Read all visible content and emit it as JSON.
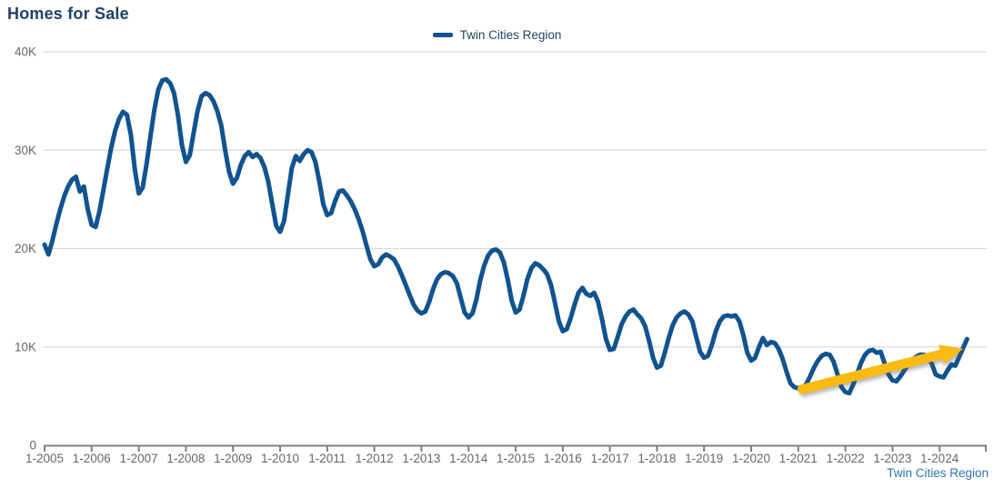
{
  "chart_data": {
    "type": "line",
    "title": "Homes for Sale",
    "footer_label": "Twin Cities Region",
    "legend": {
      "position": "top-center",
      "label": "Twin Cities Region"
    },
    "grid": true,
    "colors": {
      "line": "#10538F",
      "arrow": "#FBBA12",
      "title_text": "#1F4266",
      "footer_text": "#2E74B5",
      "gridline": "#D9D9D9",
      "axis_line": "#7F7F7F",
      "tick_text": "#666666"
    },
    "x_axis": {
      "tick_labels": [
        "1-2005",
        "1-2006",
        "1-2007",
        "1-2008",
        "1-2009",
        "1-2010",
        "1-2011",
        "1-2012",
        "1-2013",
        "1-2014",
        "1-2015",
        "1-2016",
        "1-2017",
        "1-2018",
        "1-2019",
        "1-2020",
        "1-2021",
        "1-2022",
        "1-2023",
        "1-2024"
      ],
      "start_month": "2005-01",
      "months_per_tick": 12
    },
    "y_axis": {
      "ylim": [
        0,
        40000
      ],
      "ticks": [
        {
          "label": "0",
          "value": 0
        },
        {
          "label": "10K",
          "value": 10000
        },
        {
          "label": "20K",
          "value": 20000
        },
        {
          "label": "30K",
          "value": 30000
        },
        {
          "label": "40K",
          "value": 40000
        }
      ]
    },
    "series": [
      {
        "name": "Twin Cities Region",
        "start_month": "2005-01",
        "frequency": "monthly",
        "values": [
          20400,
          19400,
          20800,
          22500,
          24000,
          25300,
          26300,
          27000,
          27300,
          25800,
          26300,
          24000,
          22400,
          22200,
          23800,
          26000,
          28200,
          30300,
          32000,
          33200,
          33900,
          33600,
          31500,
          28000,
          25600,
          26200,
          28600,
          31500,
          34200,
          36200,
          37100,
          37200,
          36800,
          35800,
          33500,
          30500,
          28800,
          29500,
          31800,
          34000,
          35500,
          35800,
          35600,
          35000,
          34000,
          32500,
          30000,
          27800,
          26600,
          27200,
          28500,
          29400,
          29800,
          29300,
          29600,
          29200,
          28300,
          26800,
          24500,
          22300,
          21700,
          22800,
          25500,
          28200,
          29400,
          28900,
          29600,
          30000,
          29800,
          28800,
          26800,
          24500,
          23400,
          23600,
          24800,
          25800,
          25900,
          25400,
          24800,
          24000,
          23000,
          21800,
          20300,
          18900,
          18200,
          18400,
          19100,
          19400,
          19200,
          18900,
          18200,
          17300,
          16300,
          15300,
          14300,
          13700,
          13400,
          13600,
          14600,
          15900,
          16900,
          17400,
          17600,
          17500,
          17200,
          16500,
          15000,
          13500,
          13000,
          13400,
          14800,
          16800,
          18300,
          19300,
          19800,
          19900,
          19600,
          18600,
          16800,
          14700,
          13500,
          13800,
          15200,
          16900,
          18000,
          18500,
          18300,
          17900,
          17400,
          16300,
          14500,
          12600,
          11600,
          11800,
          12900,
          14300,
          15500,
          16000,
          15400,
          15200,
          15500,
          14600,
          12800,
          10800,
          9700,
          9800,
          11000,
          12300,
          13100,
          13600,
          13800,
          13300,
          12900,
          12100,
          10600,
          8900,
          7900,
          8100,
          9400,
          10900,
          12200,
          13000,
          13400,
          13600,
          13300,
          12600,
          11000,
          9500,
          8900,
          9100,
          10200,
          11600,
          12600,
          13100,
          13200,
          13100,
          13200,
          12600,
          11200,
          9400,
          8600,
          8900,
          10000,
          10900,
          10200,
          10500,
          10400,
          9800,
          8800,
          7500,
          6300,
          5900,
          5800,
          5800,
          6200,
          7000,
          7900,
          8600,
          9100,
          9300,
          9200,
          8500,
          7200,
          5900,
          5400,
          5300,
          6200,
          7300,
          8400,
          9200,
          9600,
          9700,
          9400,
          9500,
          8300,
          7200,
          6600,
          6500,
          7000,
          7600,
          8200,
          8700,
          9000,
          9200,
          9200,
          9000,
          8300,
          7200,
          7000,
          6900,
          7600,
          8200,
          8100,
          9000,
          9900,
          10800
        ]
      }
    ],
    "annotation": {
      "type": "arrow",
      "description": "upward trend arrow",
      "from": {
        "month": "2021-02",
        "value": 5700
      },
      "to": {
        "month": "2024-07",
        "value": 9800
      }
    }
  }
}
